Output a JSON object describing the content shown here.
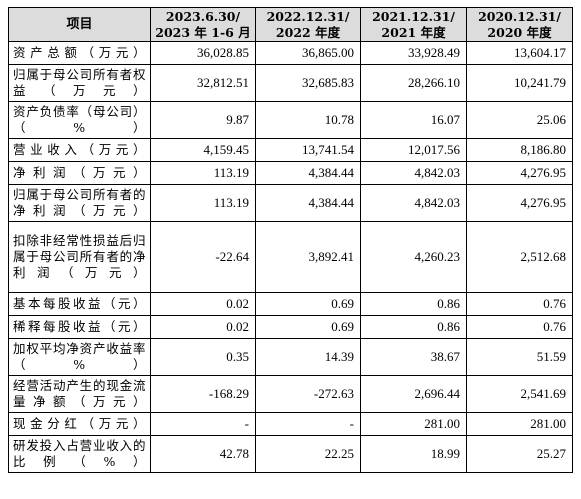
{
  "table": {
    "header": {
      "label": "项目",
      "columns": [
        [
          "2023.6.30/",
          "2023 年 1-6 月"
        ],
        [
          "2022.12.31/",
          "2022 年度"
        ],
        [
          "2021.12.31/",
          "2021 年度"
        ],
        [
          "2020.12.31/",
          "2020 年度"
        ]
      ]
    },
    "rows": [
      {
        "label": "资产总额（万元）",
        "values": [
          "36,028.85",
          "36,865.00",
          "33,928.49",
          "13,604.17"
        ]
      },
      {
        "label": "归属于母公司所有者权益（万元）",
        "values": [
          "32,812.51",
          "32,685.83",
          "28,266.10",
          "10,241.79"
        ]
      },
      {
        "label": "资产负债率（母公司）（%）",
        "values": [
          "9.87",
          "10.78",
          "16.07",
          "25.06"
        ]
      },
      {
        "label": "营业收入（万元）",
        "values": [
          "4,159.45",
          "13,741.54",
          "12,017.56",
          "8,186.80"
        ]
      },
      {
        "label": "净利润（万元）",
        "values": [
          "113.19",
          "4,384.44",
          "4,842.03",
          "4,276.95"
        ]
      },
      {
        "label": "归属于母公司所有者的净利润（万元）",
        "values": [
          "113.19",
          "4,384.44",
          "4,842.03",
          "4,276.95"
        ]
      },
      {
        "label": "扣除非经常性损益后归属于母公司所有者的净利润（万元）",
        "values": [
          "-22.64",
          "3,892.41",
          "4,260.23",
          "2,512.68"
        ]
      },
      {
        "label": "基本每股收益（元）",
        "values": [
          "0.02",
          "0.69",
          "0.86",
          "0.76"
        ]
      },
      {
        "label": "稀释每股收益（元）",
        "values": [
          "0.02",
          "0.69",
          "0.86",
          "0.76"
        ]
      },
      {
        "label": "加权平均净资产收益率（%）",
        "values": [
          "0.35",
          "14.39",
          "38.67",
          "51.59"
        ]
      },
      {
        "label": "经营活动产生的现金流量净额（万元）",
        "values": [
          "-168.29",
          "-272.63",
          "2,696.44",
          "2,541.69"
        ]
      },
      {
        "label": "现金分红（万元）",
        "values": [
          "-",
          "-",
          "281.00",
          "281.00"
        ]
      },
      {
        "label": "研发投入占营业收入的比例（%）",
        "values": [
          "42.78",
          "22.25",
          "18.99",
          "25.27"
        ]
      }
    ]
  }
}
